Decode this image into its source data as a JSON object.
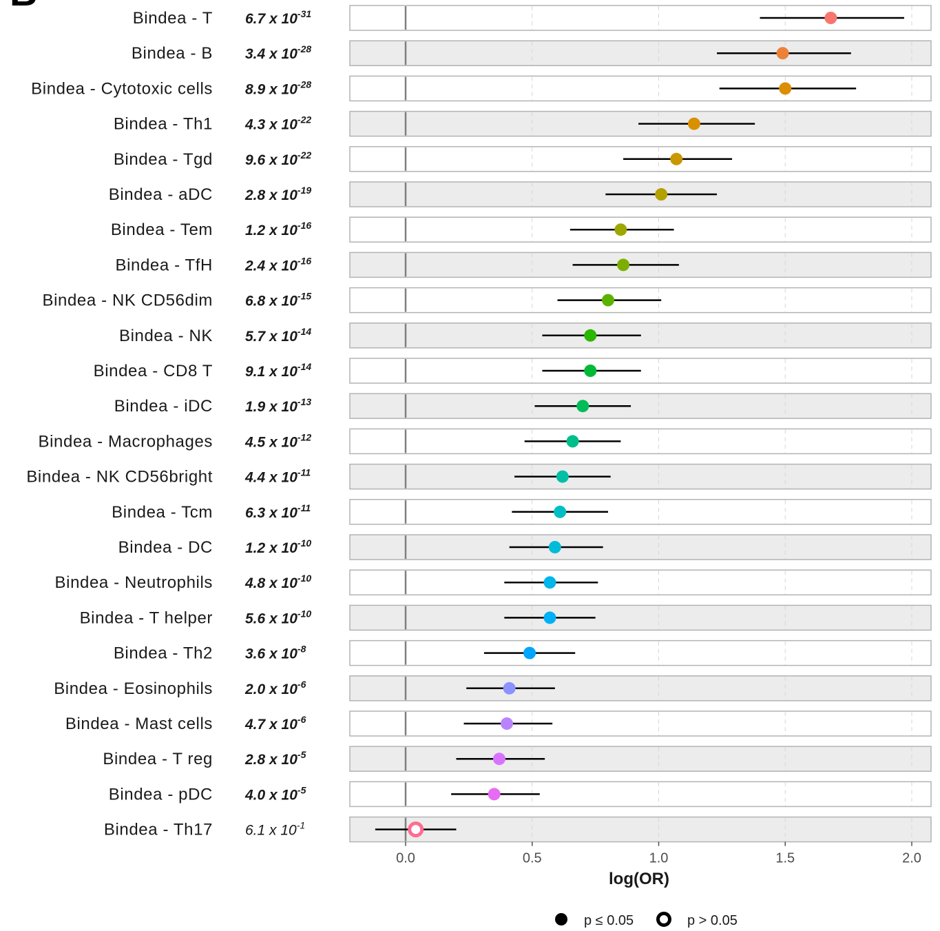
{
  "panel_letter": "B",
  "chart_data": {
    "type": "forest",
    "xlabel": "log(OR)",
    "xlim": [
      -0.22,
      2.08
    ],
    "xticks": [
      "0.0",
      "0.5",
      "1.0",
      "1.5",
      "2.0"
    ],
    "reference_line": 0,
    "legend": {
      "position": "bottom",
      "items": [
        {
          "label": "p ≤ 0.05",
          "marker": "filled"
        },
        {
          "label": "p > 0.05",
          "marker": "hollow"
        }
      ]
    },
    "rows": [
      {
        "label": "Bindea - T",
        "p_mantissa": "6.7 x 10",
        "p_exp": "-31",
        "significant": true,
        "est": 1.68,
        "lo": 1.4,
        "hi": 1.97,
        "color": "#F8766D"
      },
      {
        "label": "Bindea - B",
        "p_mantissa": "3.4 x 10",
        "p_exp": "-28",
        "significant": true,
        "est": 1.49,
        "lo": 1.23,
        "hi": 1.76,
        "color": "#EC8239"
      },
      {
        "label": "Bindea - Cytotoxic cells",
        "p_mantissa": "8.9 x 10",
        "p_exp": "-28",
        "significant": true,
        "est": 1.5,
        "lo": 1.24,
        "hi": 1.78,
        "color": "#DB8E00"
      },
      {
        "label": "Bindea - Th1",
        "p_mantissa": "4.3 x 10",
        "p_exp": "-22",
        "significant": true,
        "est": 1.14,
        "lo": 0.92,
        "hi": 1.38,
        "color": "#D89000"
      },
      {
        "label": "Bindea - Tgd",
        "p_mantissa": "9.6 x 10",
        "p_exp": "-22",
        "significant": true,
        "est": 1.07,
        "lo": 0.86,
        "hi": 1.29,
        "color": "#C99800"
      },
      {
        "label": "Bindea - aDC",
        "p_mantissa": "2.8 x 10",
        "p_exp": "-19",
        "significant": true,
        "est": 1.01,
        "lo": 0.79,
        "hi": 1.23,
        "color": "#B4A000"
      },
      {
        "label": "Bindea - Tem",
        "p_mantissa": "1.2 x 10",
        "p_exp": "-16",
        "significant": true,
        "est": 0.85,
        "lo": 0.65,
        "hi": 1.06,
        "color": "#9DA700"
      },
      {
        "label": "Bindea - TfH",
        "p_mantissa": "2.4 x 10",
        "p_exp": "-16",
        "significant": true,
        "est": 0.86,
        "lo": 0.66,
        "hi": 1.08,
        "color": "#7CAE00"
      },
      {
        "label": "Bindea - NK CD56dim",
        "p_mantissa": "6.8 x 10",
        "p_exp": "-15",
        "significant": true,
        "est": 0.8,
        "lo": 0.6,
        "hi": 1.01,
        "color": "#5BB300"
      },
      {
        "label": "Bindea - NK",
        "p_mantissa": "5.7 x 10",
        "p_exp": "-14",
        "significant": true,
        "est": 0.73,
        "lo": 0.54,
        "hi": 0.93,
        "color": "#2BB600"
      },
      {
        "label": "Bindea - CD8 T",
        "p_mantissa": "9.1 x 10",
        "p_exp": "-14",
        "significant": true,
        "est": 0.73,
        "lo": 0.54,
        "hi": 0.93,
        "color": "#00BA38"
      },
      {
        "label": "Bindea - iDC",
        "p_mantissa": "1.9 x 10",
        "p_exp": "-13",
        "significant": true,
        "est": 0.7,
        "lo": 0.51,
        "hi": 0.89,
        "color": "#00BC59"
      },
      {
        "label": "Bindea - Macrophages",
        "p_mantissa": "4.5 x 10",
        "p_exp": "-12",
        "significant": true,
        "est": 0.66,
        "lo": 0.47,
        "hi": 0.85,
        "color": "#00BE8A"
      },
      {
        "label": "Bindea - NK CD56bright",
        "p_mantissa": "4.4 x 10",
        "p_exp": "-11",
        "significant": true,
        "est": 0.62,
        "lo": 0.43,
        "hi": 0.81,
        "color": "#00BFA6"
      },
      {
        "label": "Bindea - Tcm",
        "p_mantissa": "6.3 x 10",
        "p_exp": "-11",
        "significant": true,
        "est": 0.61,
        "lo": 0.42,
        "hi": 0.8,
        "color": "#00BFC4"
      },
      {
        "label": "Bindea - DC",
        "p_mantissa": "1.2 x 10",
        "p_exp": "-10",
        "significant": true,
        "est": 0.59,
        "lo": 0.41,
        "hi": 0.78,
        "color": "#00BCD8"
      },
      {
        "label": "Bindea - Neutrophils",
        "p_mantissa": "4.8 x 10",
        "p_exp": "-10",
        "significant": true,
        "est": 0.57,
        "lo": 0.39,
        "hi": 0.76,
        "color": "#00B6EB"
      },
      {
        "label": "Bindea - T helper",
        "p_mantissa": "5.6 x 10",
        "p_exp": "-10",
        "significant": true,
        "est": 0.57,
        "lo": 0.39,
        "hi": 0.75,
        "color": "#00B0F6"
      },
      {
        "label": "Bindea - Th2",
        "p_mantissa": "3.6 x 10",
        "p_exp": "-8",
        "significant": true,
        "est": 0.49,
        "lo": 0.31,
        "hi": 0.67,
        "color": "#00A5FF"
      },
      {
        "label": "Bindea - Eosinophils",
        "p_mantissa": "2.0 x 10",
        "p_exp": "-6",
        "significant": true,
        "est": 0.41,
        "lo": 0.24,
        "hi": 0.59,
        "color": "#8B93FF"
      },
      {
        "label": "Bindea - Mast cells",
        "p_mantissa": "4.7 x 10",
        "p_exp": "-6",
        "significant": true,
        "est": 0.4,
        "lo": 0.23,
        "hi": 0.58,
        "color": "#B983FF"
      },
      {
        "label": "Bindea - T reg",
        "p_mantissa": "2.8 x 10",
        "p_exp": "-5",
        "significant": true,
        "est": 0.37,
        "lo": 0.2,
        "hi": 0.55,
        "color": "#D774FD"
      },
      {
        "label": "Bindea - pDC",
        "p_mantissa": "4.0 x 10",
        "p_exp": "-5",
        "significant": true,
        "est": 0.35,
        "lo": 0.18,
        "hi": 0.53,
        "color": "#E76BF3"
      },
      {
        "label": "Bindea - Th17",
        "p_mantissa": "6.1 x 10",
        "p_exp": "-1",
        "significant": false,
        "est": 0.04,
        "lo": -0.12,
        "hi": 0.2,
        "color": "#FF6C91"
      }
    ]
  }
}
